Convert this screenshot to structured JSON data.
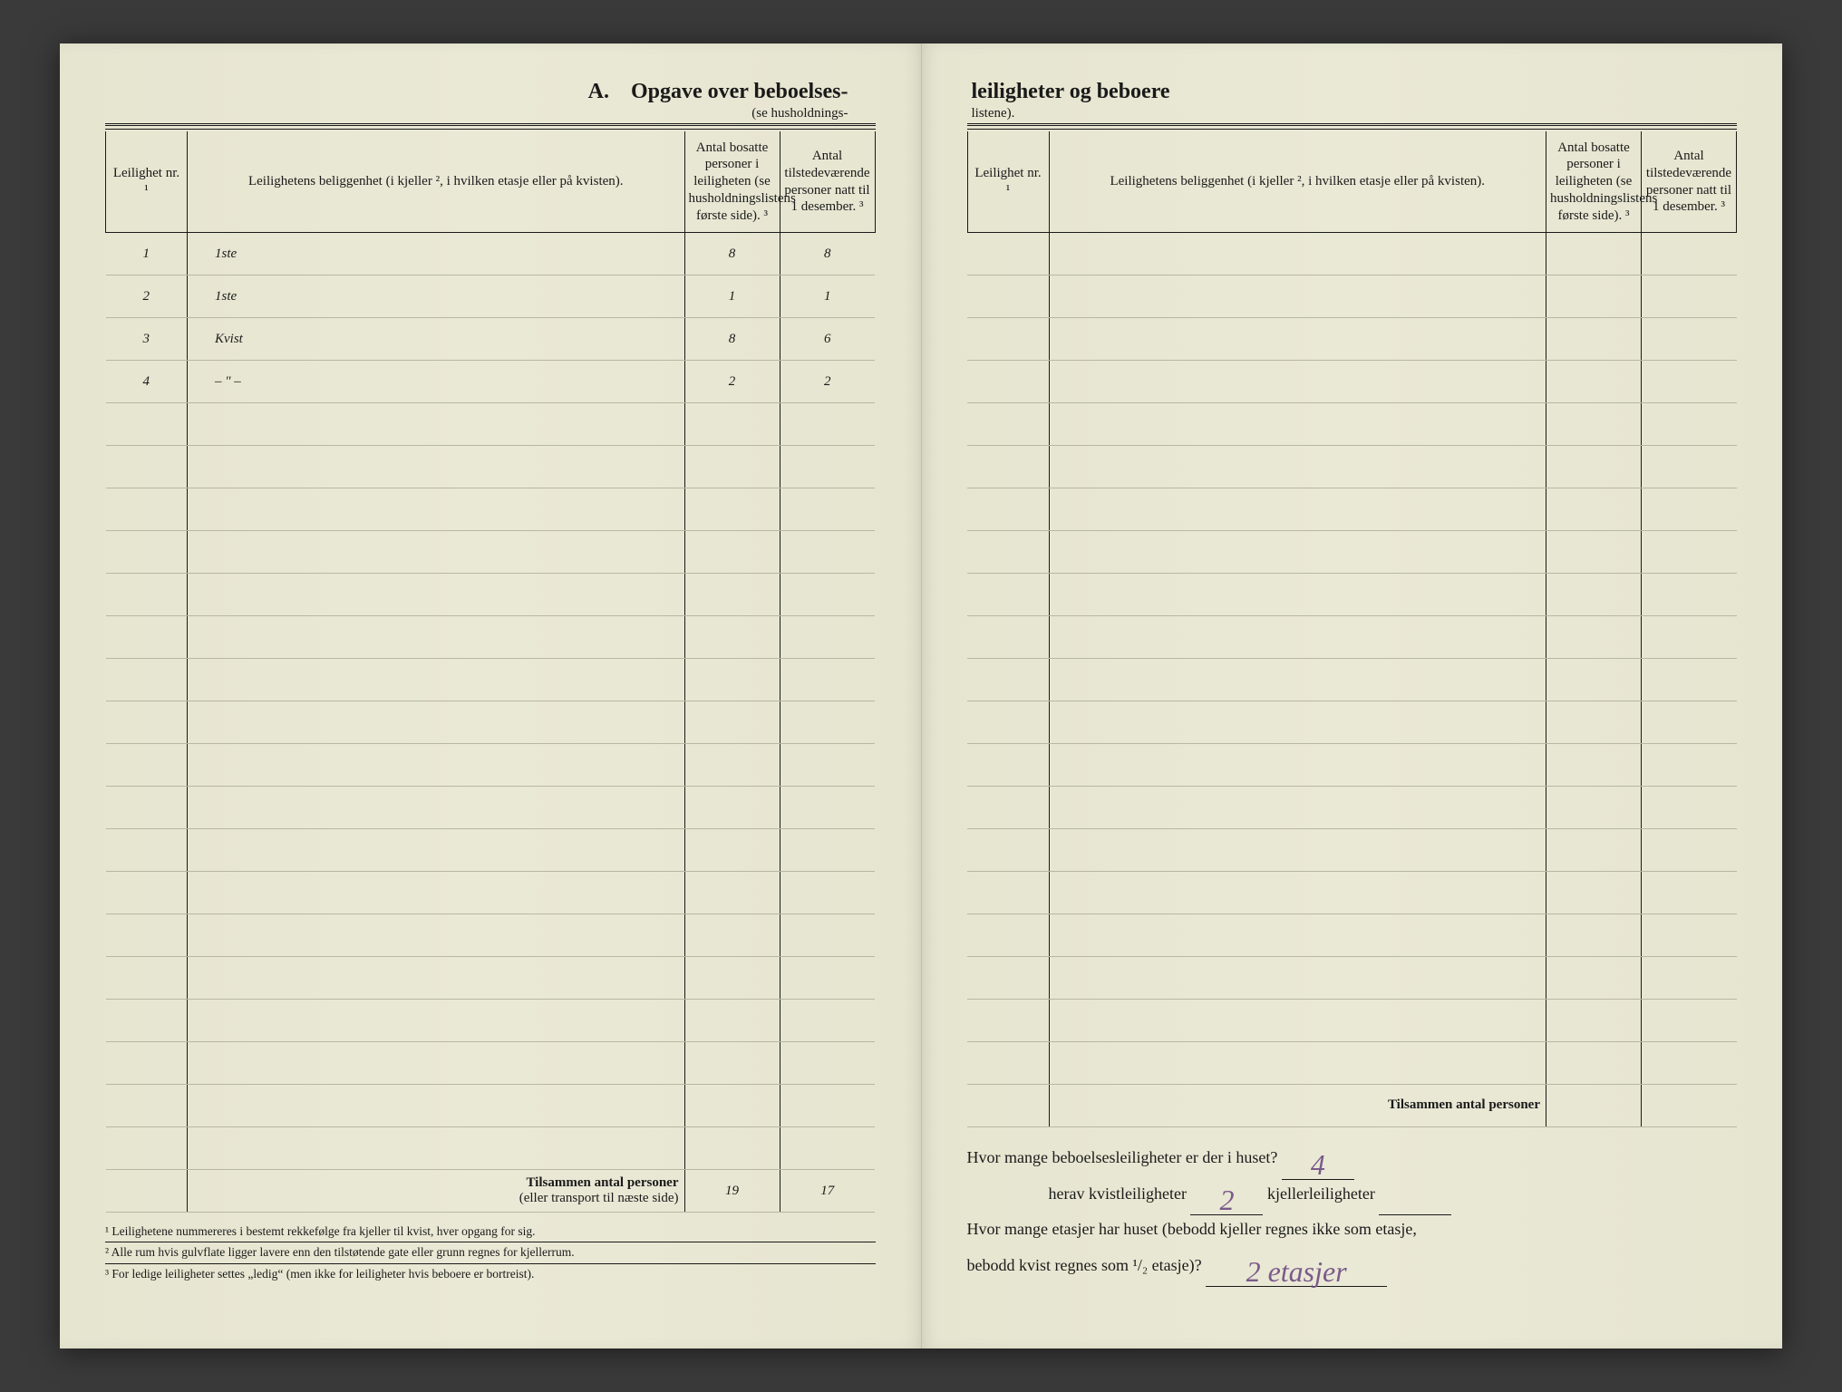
{
  "left": {
    "title": "A. Opgave over beboelses-",
    "subtitle": "(se husholdnings-",
    "headers": {
      "nr": "Leilighet nr. ¹",
      "loc": "Leilighetens beliggenhet (i kjeller ², i hvilken etasje eller på kvisten).",
      "colA": "Antal bosatte personer i leiligheten (se husholdningslistens første side). ³",
      "colB": "Antal tilstedeværende personer natt til 1 desember. ³"
    },
    "rows": [
      {
        "nr": "1",
        "loc": "1ste",
        "a": "8",
        "b": "8"
      },
      {
        "nr": "2",
        "loc": "1ste",
        "a": "1",
        "b": "1"
      },
      {
        "nr": "3",
        "loc": "Kvist",
        "a": "8",
        "b": "6"
      },
      {
        "nr": "4",
        "loc": "– \" –",
        "a": "2",
        "b": "2"
      },
      {
        "nr": "",
        "loc": "",
        "a": "",
        "b": ""
      },
      {
        "nr": "",
        "loc": "",
        "a": "",
        "b": ""
      },
      {
        "nr": "",
        "loc": "",
        "a": "",
        "b": ""
      },
      {
        "nr": "",
        "loc": "",
        "a": "",
        "b": ""
      },
      {
        "nr": "",
        "loc": "",
        "a": "",
        "b": ""
      },
      {
        "nr": "",
        "loc": "",
        "a": "",
        "b": ""
      },
      {
        "nr": "",
        "loc": "",
        "a": "",
        "b": ""
      },
      {
        "nr": "",
        "loc": "",
        "a": "",
        "b": ""
      },
      {
        "nr": "",
        "loc": "",
        "a": "",
        "b": ""
      },
      {
        "nr": "",
        "loc": "",
        "a": "",
        "b": ""
      },
      {
        "nr": "",
        "loc": "",
        "a": "",
        "b": ""
      },
      {
        "nr": "",
        "loc": "",
        "a": "",
        "b": ""
      },
      {
        "nr": "",
        "loc": "",
        "a": "",
        "b": ""
      },
      {
        "nr": "",
        "loc": "",
        "a": "",
        "b": ""
      },
      {
        "nr": "",
        "loc": "",
        "a": "",
        "b": ""
      },
      {
        "nr": "",
        "loc": "",
        "a": "",
        "b": ""
      },
      {
        "nr": "",
        "loc": "",
        "a": "",
        "b": ""
      },
      {
        "nr": "",
        "loc": "",
        "a": "",
        "b": ""
      }
    ],
    "totals": {
      "label_bold": "Tilsammen antal personer",
      "label_sub": "(eller transport til næste side)",
      "a": "19",
      "b": "17"
    },
    "footnotes": [
      "¹  Leilighetene nummereres i bestemt rekkefølge fra kjeller til kvist, hver opgang for sig.",
      "²  Alle rum hvis gulvflate ligger lavere enn den tilstøtende gate eller grunn regnes for kjellerrum.",
      "³  For ledige leiligheter settes „ledig“ (men ikke for leiligheter hvis beboere er bortreist)."
    ]
  },
  "right": {
    "title": "leiligheter og beboere",
    "subtitle": "listene).",
    "headers": {
      "nr": "Leilighet nr. ¹",
      "loc": "Leilighetens beliggenhet (i kjeller ², i hvilken etasje eller på kvisten).",
      "colA": "Antal bosatte personer i leiligheten (se husholdningslistens første side). ³",
      "colB": "Antal tilstedeværende personer natt til 1 desember. ³"
    },
    "rows_count": 20,
    "totals": {
      "label_bold": "Tilsammen antal personer",
      "a": "",
      "b": ""
    },
    "questions": {
      "q1_pre": "Hvor mange beboelsesleiligheter er der i huset?",
      "q1_ans": "4",
      "q2_pre": "herav kvistleiligheter",
      "q2_ans": "2",
      "q2_mid": "kjellerleiligheter",
      "q2_ans2": "",
      "q3_line1": "Hvor mange etasjer har huset (bebodd kjeller regnes ikke som etasje,",
      "q3_line2_pre": "bebodd kvist regnes som ¹/₂ etasje)?",
      "q3_ans": "2 etasjer"
    }
  },
  "style": {
    "paper_color": "#e8e7d4",
    "ink_color": "#1a1a1a",
    "pencil_color": "#6b6b6b",
    "purple_pencil": "#7a5a8a"
  }
}
